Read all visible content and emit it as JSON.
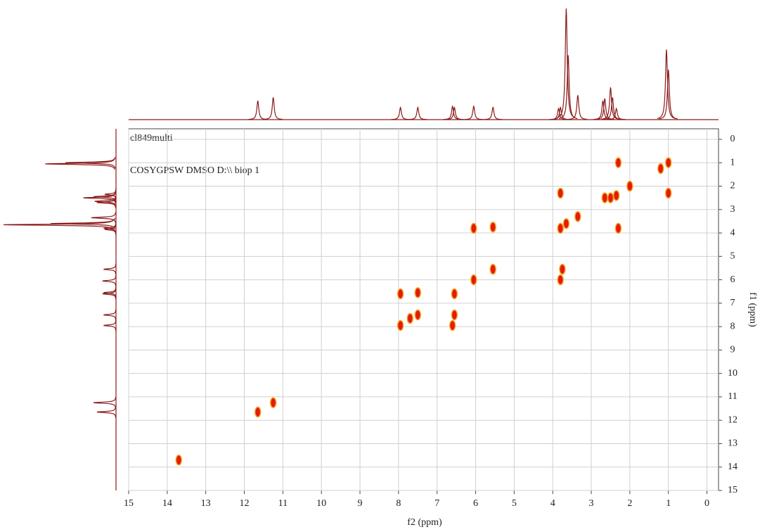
{
  "chart_data": {
    "type": "scatter",
    "annotations": [
      "cl849multi",
      "COSYGPSW DMSO D:\\\\ biop 1"
    ],
    "xlabel": "f2 (ppm)",
    "ylabel": "f1 (ppm)",
    "xlim": [
      15,
      -0.3
    ],
    "ylim": [
      -0.45,
      15
    ],
    "xticks": [
      15,
      14,
      13,
      12,
      11,
      10,
      9,
      8,
      7,
      6,
      5,
      4,
      3,
      2,
      1,
      0
    ],
    "yticks": [
      0,
      1,
      2,
      3,
      4,
      5,
      6,
      7,
      8,
      9,
      10,
      11,
      12,
      13,
      14,
      15
    ],
    "grid": true,
    "color": "#e31a0c",
    "x": [
      1.0,
      2.3,
      1.0,
      3.8,
      2.65,
      2.5,
      2.35,
      3.8,
      3.65,
      3.35,
      2.3,
      6.05,
      5.55,
      6.05,
      5.55,
      3.75,
      3.8,
      7.95,
      7.5,
      6.55,
      7.95,
      7.5,
      6.55,
      6.6,
      11.65,
      11.25,
      13.7,
      1.2,
      2.0,
      7.7
    ],
    "values": [
      1.0,
      1.0,
      2.3,
      2.3,
      2.5,
      2.5,
      2.4,
      3.8,
      3.6,
      3.3,
      3.8,
      3.8,
      3.75,
      6.0,
      5.55,
      5.55,
      6.0,
      6.6,
      6.55,
      6.6,
      7.95,
      7.5,
      7.5,
      7.95,
      11.65,
      11.25,
      13.7,
      1.25,
      2.0,
      7.65
    ],
    "projection": {
      "color": "#8b1a1a",
      "ppm": [
        11.65,
        11.25,
        7.95,
        7.5,
        6.6,
        6.55,
        6.05,
        5.55,
        3.85,
        3.8,
        3.65,
        3.6,
        3.35,
        2.7,
        2.65,
        2.5,
        2.45,
        2.35,
        1.05,
        1.0
      ],
      "intensity": [
        0.17,
        0.2,
        0.11,
        0.11,
        0.12,
        0.11,
        0.12,
        0.11,
        0.1,
        0.11,
        1.0,
        0.58,
        0.22,
        0.17,
        0.19,
        0.29,
        0.2,
        0.1,
        0.63,
        0.45
      ]
    }
  }
}
